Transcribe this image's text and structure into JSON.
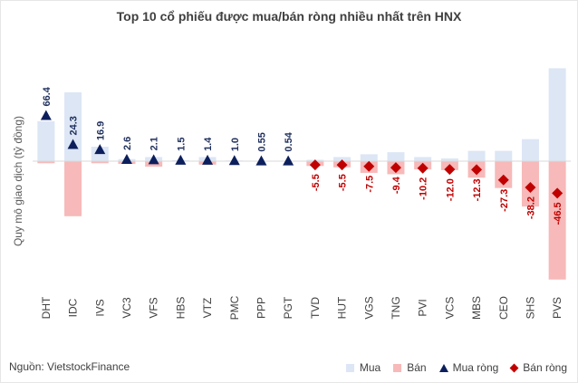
{
  "title": "Top 10 cổ phiếu được mua/bán ròng nhiều nhất trên HNX",
  "source": "Nguồn: VietstockFinance",
  "legend": {
    "buy": "Mua",
    "sell": "Bán",
    "net_buy": "Mua ròng",
    "net_sell": "Bán ròng"
  },
  "colors": {
    "buy": "#dce6f5",
    "sell": "#f7b9b9",
    "net_buy": "#0c1f5c",
    "net_sell": "#c00000",
    "net_buy_label": "#1f2f5c",
    "net_sell_label": "#c00000"
  },
  "chart_data": {
    "type": "bar",
    "title": "Top 10 cổ phiếu được mua/bán ròng nhiều nhất trên HNX",
    "ylabel": "Quy mô giao dịch (tỷ đồng)",
    "xlabel": "",
    "ylim": [
      -200,
      135
    ],
    "grid": false,
    "legend_position": "bottom-right",
    "categories": [
      "DHT",
      "IDC",
      "IVS",
      "VC3",
      "VFS",
      "HBS",
      "VTZ",
      "PMC",
      "PPP",
      "PGT",
      "TVD",
      "HUT",
      "VGS",
      "TNG",
      "PVI",
      "VCS",
      "MBS",
      "CEO",
      "SHS",
      "PVS"
    ],
    "series": [
      {
        "name": "Mua",
        "kind": "bar",
        "values": [
          58,
          100,
          21,
          3,
          6,
          1.5,
          6,
          1,
          0.6,
          0.6,
          2,
          6,
          10,
          13,
          6,
          4,
          15,
          15,
          32,
          135
        ]
      },
      {
        "name": "Bán",
        "kind": "bar",
        "values": [
          -3,
          -80,
          -3,
          -4,
          -8,
          0,
          -5,
          0,
          0,
          0,
          -7,
          -9,
          -17,
          -19,
          -12,
          -13,
          -24,
          -39,
          -66,
          -172
        ]
      },
      {
        "name": "Mua ròng",
        "kind": "marker",
        "values": [
          66.4,
          24.3,
          16.9,
          2.6,
          2.1,
          1.5,
          1.4,
          1.0,
          0.55,
          0.54,
          null,
          null,
          null,
          null,
          null,
          null,
          null,
          null,
          null,
          null
        ]
      },
      {
        "name": "Bán ròng",
        "kind": "marker",
        "values": [
          null,
          null,
          null,
          null,
          null,
          null,
          null,
          null,
          null,
          null,
          -5.5,
          -5.5,
          -7.5,
          -9.4,
          -10.2,
          -12.0,
          -12.3,
          -27.3,
          -38.2,
          -46.5
        ]
      }
    ],
    "net_labels": [
      "66.4",
      "24.3",
      "16.9",
      "2.6",
      "2.1",
      "1.5",
      "1.4",
      "1.0",
      "0.55",
      "0.54",
      "-5.5",
      "-5.5",
      "-7.5",
      "-9.4",
      "-10.2",
      "-12.0",
      "-12.3",
      "-27.3",
      "-38.2",
      "-46.5"
    ]
  }
}
